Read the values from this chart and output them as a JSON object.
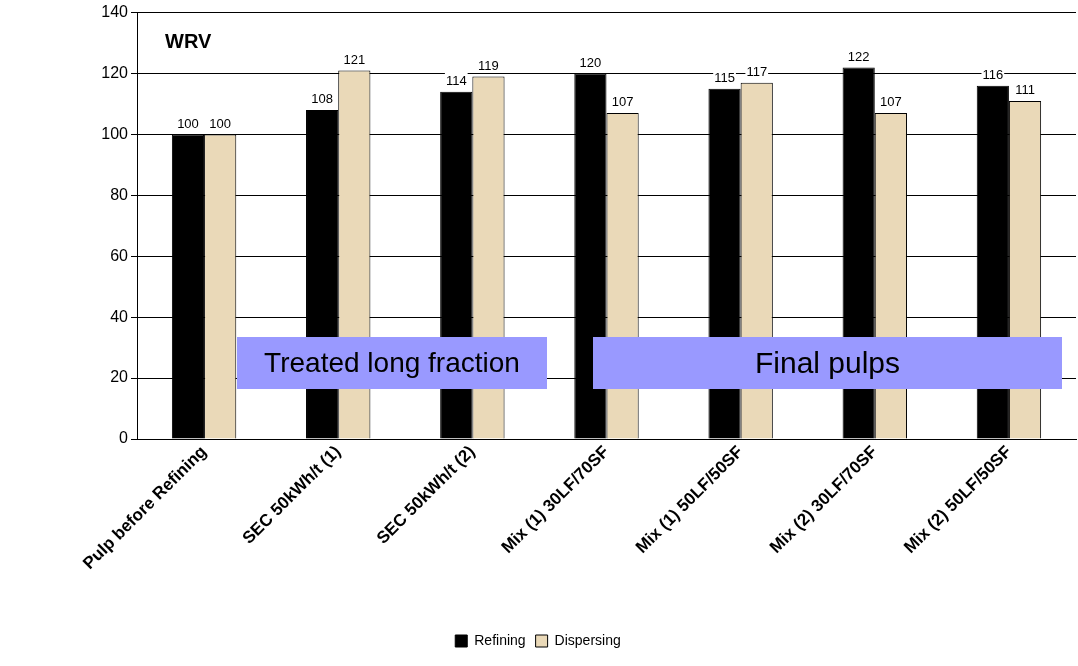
{
  "chart_data": {
    "type": "bar",
    "title": "WRV",
    "categories": [
      "Pulp before Refining",
      "SEC 50kWh/t (1)",
      "SEC 50kWh/t (2)",
      "Mix (1) 30LF/70SF",
      "Mix (1) 50LF/50SF",
      "Mix (2) 30LF/70SF",
      "Mix (2) 50LF/50SF"
    ],
    "series": [
      {
        "name": "Refining",
        "color": "#000000",
        "values": [
          100,
          108,
          114,
          120,
          115,
          122,
          116
        ]
      },
      {
        "name": "Dispersing",
        "color": "#ead9b8",
        "values": [
          100,
          121,
          119,
          107,
          117,
          107,
          111
        ]
      }
    ],
    "ylim": [
      0,
      140
    ],
    "yticks": [
      0,
      20,
      40,
      60,
      80,
      100,
      120,
      140
    ],
    "grid": "y",
    "legend": "bottom",
    "data_labels": true,
    "annotations": [
      "Treated long fraction",
      "Final pulps"
    ]
  }
}
